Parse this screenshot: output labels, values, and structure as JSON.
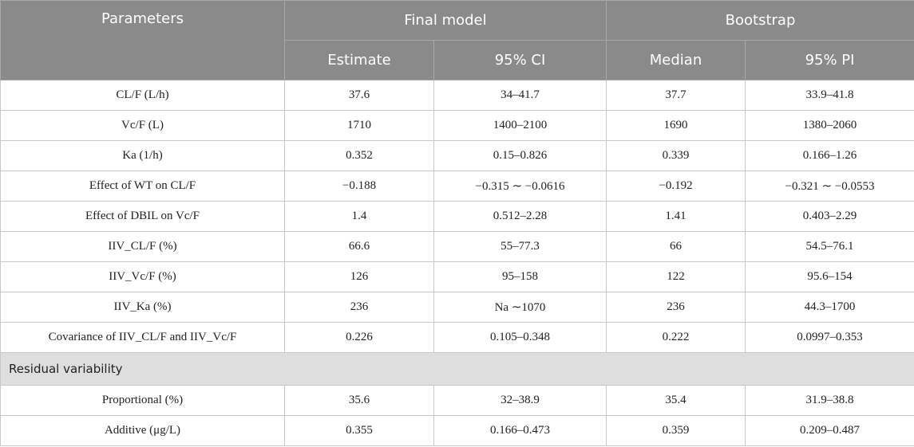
{
  "header": {
    "parameters": "Parameters",
    "final_model": "Final model",
    "bootstrap": "Bootstrap",
    "subheaders": [
      "Estimate",
      "95% CI",
      "Median",
      "95% PI"
    ]
  },
  "rows": [
    [
      "CL/F (L/h)",
      "37.6",
      "34–41.7",
      "37.7",
      "33.9–41.8"
    ],
    [
      "Vc/F (L)",
      "1710",
      "1400–2100",
      "1690",
      "1380–2060"
    ],
    [
      "Ka (1/h)",
      "0.352",
      "0.15–0.826",
      "0.339",
      "0.166–1.26"
    ],
    [
      "Effect of WT on CL/F",
      "−0.188",
      "−0.315 ∼ −0.0616",
      "−0.192",
      "−0.321 ∼ −0.0553"
    ],
    [
      "Effect of DBIL on Vc/F",
      "1.4",
      "0.512–2.28",
      "1.41",
      "0.403–2.29"
    ],
    [
      "IIV_CL/F (%)",
      "66.6",
      "55–77.3",
      "66",
      "54.5–76.1"
    ],
    [
      "IIV_Vc/F (%)",
      "126",
      "95–158",
      "122",
      "95.6–154"
    ],
    [
      "IIV_Ka (%)",
      "236",
      "Na ∼1070",
      "236",
      "44.3–1700"
    ],
    [
      "Covariance of IIV_CL/F and IIV_Vc/F",
      "0.226",
      "0.105–0.348",
      "0.222",
      "0.0997–0.353"
    ]
  ],
  "section": "Residual variability",
  "residual_rows": [
    [
      "Proportional (%)",
      "35.6",
      "32–38.9",
      "35.4",
      "31.9–38.8"
    ],
    [
      "Additive (μg/L)",
      "0.355",
      "0.166–0.473",
      "0.359",
      "0.209–0.487"
    ]
  ]
}
